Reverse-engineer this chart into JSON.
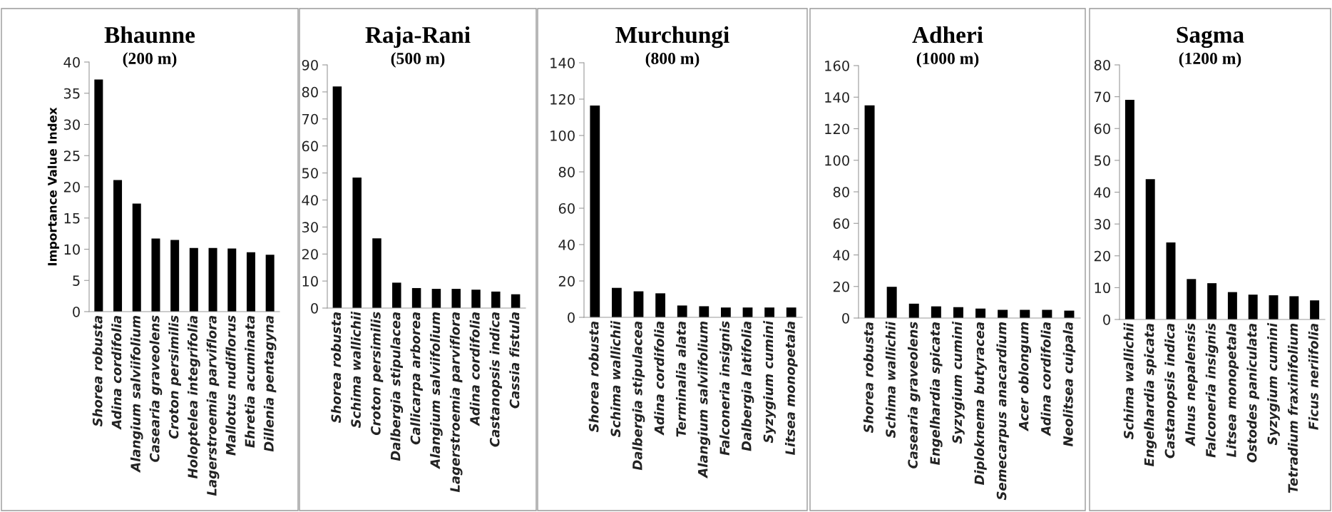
{
  "chart_data": [
    {
      "type": "bar",
      "title": "Bhaunne",
      "subtitle": "(200 m)",
      "ylabel": "Importance Value Index",
      "categories": [
        "Shorea robusta",
        "Adina cordifolia",
        "Alangium salviifolium",
        "Casearia graveolens",
        "Croton persimilis",
        "Holoptelea integrifolia",
        "Lagerstroemia parviflora",
        "Mallotus nudiflorus",
        "Ehretia acuminata",
        "Dillenia pentagyna"
      ],
      "values": [
        37.2,
        21.1,
        17.3,
        11.7,
        11.5,
        10.2,
        10.2,
        10.1,
        9.5,
        9.1
      ],
      "color": "#000000",
      "ylim": [
        0,
        40
      ],
      "yticks": [
        0,
        5,
        10,
        15,
        20,
        25,
        30,
        35,
        40
      ],
      "grid": false,
      "legend": false
    },
    {
      "type": "bar",
      "title": "Raja-Rani",
      "subtitle": "(500 m)",
      "categories": [
        "Shorea robusta",
        "Schima wallichii",
        "Croton persimilis",
        "Dalbergia stipulacea",
        "Callicarpa arborea",
        "Alangium salviifolium",
        "Lagerstroemia parviflora",
        "Adina cordifolia",
        "Castanopsis indica",
        "Cassia fistula"
      ],
      "values": [
        82,
        48.3,
        25.8,
        9.4,
        7.4,
        7.1,
        7.1,
        6.8,
        6.1,
        5.1
      ],
      "color": "#000000",
      "ylim": [
        0,
        90
      ],
      "yticks": [
        0,
        10,
        20,
        30,
        40,
        50,
        60,
        70,
        80,
        90
      ],
      "grid": false,
      "legend": false
    },
    {
      "type": "bar",
      "title": "Murchungi",
      "subtitle": "(800 m)",
      "categories": [
        "Shorea robusta",
        "Schima wallichii",
        "Dalbergia stipulacea",
        "Adina cordifolia",
        "Terminalia alata",
        "Alangium salviifolium",
        "Falconeria insignis",
        "Dalbergia latifolia",
        "Syzygium cumini",
        "Litsea monopetala"
      ],
      "values": [
        116.5,
        16.2,
        14.3,
        13.2,
        6.5,
        6.1,
        5.4,
        5.4,
        5.4,
        5.4
      ],
      "color": "#000000",
      "ylim": [
        0,
        140
      ],
      "yticks": [
        0,
        20,
        40,
        60,
        80,
        100,
        120,
        140
      ],
      "grid": false,
      "legend": false
    },
    {
      "type": "bar",
      "title": "Adheri",
      "subtitle": "(1000 m)",
      "categories": [
        "Shorea robusta",
        "Schima wallichii",
        "Casearia graveolens",
        "Engelhardia spicata",
        "Syzygium cumini",
        "Diploknema butyracea",
        "Semecarpus anacardium",
        "Acer oblongum",
        "Adina cordifolia",
        "Neolitsea cuipala"
      ],
      "values": [
        134.8,
        19.8,
        9.1,
        7.4,
        6.9,
        6.0,
        5.2,
        5.2,
        5.2,
        4.7
      ],
      "color": "#000000",
      "ylim": [
        0,
        160
      ],
      "yticks": [
        0,
        20,
        40,
        60,
        80,
        100,
        120,
        140,
        160
      ],
      "grid": false,
      "legend": false
    },
    {
      "type": "bar",
      "title": "Sagma",
      "subtitle": "(1200 m)",
      "categories": [
        "Schima wallichii",
        "Engelhardia spicata",
        "Castanopsis indica",
        "Alnus nepalensis",
        "Falconeria insignis",
        "Litsea monopetala",
        "Ostodes paniculata",
        "Syzygium cumini",
        "Tetradium fraxinifolium",
        "Ficus neriifolia"
      ],
      "values": [
        69,
        44.1,
        24.2,
        12.7,
        11.4,
        8.6,
        7.8,
        7.6,
        7.3,
        6.0
      ],
      "color": "#000000",
      "ylim": [
        0,
        80
      ],
      "yticks": [
        0,
        10,
        20,
        30,
        40,
        50,
        60,
        70,
        80
      ],
      "grid": false,
      "legend": false
    }
  ]
}
